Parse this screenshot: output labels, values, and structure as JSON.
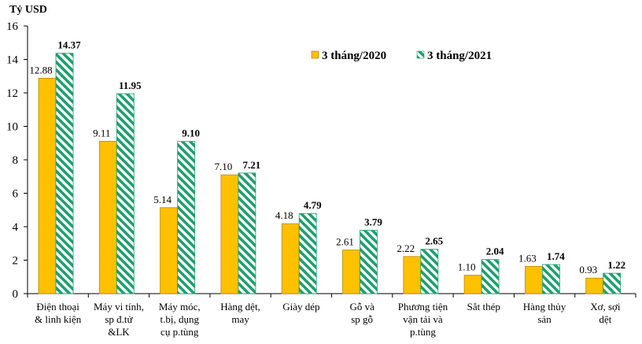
{
  "chart_data": {
    "type": "bar",
    "ylabel": "Tỷ USD",
    "ylim": [
      0,
      16
    ],
    "yticks": [
      "0",
      "2",
      "4",
      "6",
      "8",
      "10",
      "12",
      "14",
      "16"
    ],
    "grid": false,
    "legend_position": "top-right",
    "categories": [
      [
        "Điện thoại",
        "& linh kiện"
      ],
      [
        "Máy vi tính,",
        "sp đ.tử",
        "&LK"
      ],
      [
        "Máy móc,",
        "t.bị, dụng",
        "cụ p.tùng"
      ],
      [
        "Hàng dệt,",
        "may"
      ],
      [
        "Giày dép"
      ],
      [
        "Gỗ và",
        "sp gỗ"
      ],
      [
        "Phương tiện",
        "vận tải và",
        "p.tùng"
      ],
      [
        "Sắt thép"
      ],
      [
        "Hàng thủy",
        "sản"
      ],
      [
        "Xơ, sợi",
        "dệt"
      ]
    ],
    "series": [
      {
        "name": "3 tháng/2020",
        "color": "#FFC000",
        "pattern": "solid",
        "values": [
          12.88,
          9.11,
          5.14,
          7.1,
          4.18,
          2.61,
          2.22,
          1.1,
          1.63,
          0.93
        ],
        "labels": [
          "12.88",
          "9.11",
          "5.14",
          "7.10",
          "4.18",
          "2.61",
          "2.22",
          "1.10",
          "1.63",
          "0.93"
        ]
      },
      {
        "name": "3 tháng/2021",
        "color": "#1E9E6E",
        "pattern": "diagonal-stripes",
        "values": [
          14.37,
          11.95,
          9.1,
          7.21,
          4.79,
          3.79,
          2.65,
          2.04,
          1.74,
          1.22
        ],
        "labels": [
          "14.37",
          "11.95",
          "9.10",
          "7.21",
          "4.79",
          "3.79",
          "2.65",
          "2.04",
          "1.74",
          "1.22"
        ]
      }
    ]
  }
}
